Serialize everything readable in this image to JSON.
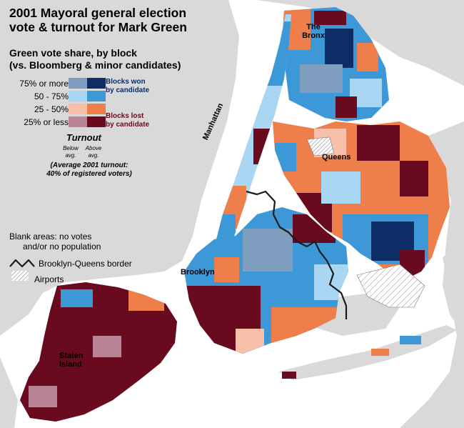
{
  "title_line1": "2001 Mayoral general election",
  "title_line2": "vote & turnout for Mark Green",
  "subtitle_line1": "Green vote share, by block",
  "subtitle_line2": "(vs. Bloomberg & minor candidates)",
  "legend": {
    "levels": [
      {
        "label": "75% or more",
        "below": "#7f9ebf",
        "above": "#0e2d66"
      },
      {
        "label": "50 - 75%",
        "below": "#a9d6f2",
        "above": "#3d98d8"
      },
      {
        "label": "25 - 50%",
        "below": "#f8c0a8",
        "above": "#ef7f4a"
      },
      {
        "label": "25% or less",
        "below": "#b88496",
        "above": "#6a0a1e"
      }
    ],
    "won_line1": "Blocks won",
    "won_line2": "by candidate",
    "lost_line1": "Blocks lost",
    "lost_line2": "by candidate",
    "turnout_title": "Turnout",
    "below_avg_line1": "Below",
    "below_avg_line2": "avg.",
    "above_avg_line1": "Above",
    "above_avg_line2": "avg.",
    "avg_turnout_line1": "(Average 2001 turnout:",
    "avg_turnout_line2": "40% of registered voters)",
    "blank_line1": "Blank areas: no votes",
    "blank_line2": "and/or no population",
    "border_label": "Brooklyn-Queens border",
    "airports_label": "Airports"
  },
  "boroughs": {
    "bronx_line1": "The",
    "bronx_line2": "Bronx",
    "manhattan": "Manhattan",
    "queens": "Queens",
    "brooklyn": "Brooklyn",
    "staten_line1": "Staten",
    "staten_line2": "Island"
  },
  "colors": {
    "water": "#ffffff",
    "land": "#d9d9d9",
    "won_strong": "#0e2d66",
    "won": "#3d98d8",
    "lost": "#ef7f4a",
    "lost_strong": "#6a0a1e"
  }
}
